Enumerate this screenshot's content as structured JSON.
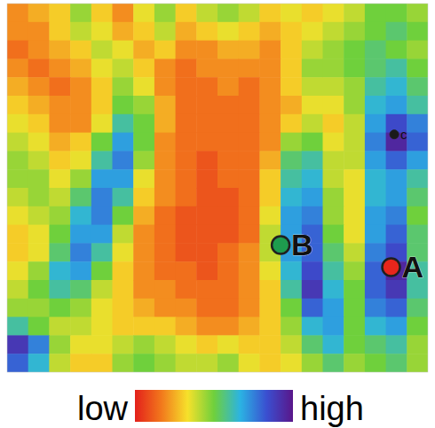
{
  "chart_data": {
    "type": "heatmap",
    "xlim": [
      0,
      20
    ],
    "ylim": [
      0,
      20
    ],
    "tick_labels": false,
    "z": [
      [
        0.2,
        0.25,
        0.3,
        0.45,
        0.3,
        0.2,
        0.35,
        0.45,
        0.3,
        0.4,
        0.45,
        0.4,
        0.3,
        0.35,
        0.3,
        0.35,
        0.4,
        0.5,
        0.5,
        0.45
      ],
      [
        0.2,
        0.2,
        0.3,
        0.4,
        0.35,
        0.25,
        0.3,
        0.4,
        0.25,
        0.3,
        0.35,
        0.3,
        0.25,
        0.3,
        0.35,
        0.4,
        0.45,
        0.5,
        0.55,
        0.5
      ],
      [
        0.15,
        0.2,
        0.25,
        0.3,
        0.4,
        0.35,
        0.25,
        0.3,
        0.2,
        0.2,
        0.25,
        0.25,
        0.2,
        0.3,
        0.4,
        0.45,
        0.5,
        0.55,
        0.5,
        0.45
      ],
      [
        0.2,
        0.15,
        0.2,
        0.25,
        0.35,
        0.4,
        0.3,
        0.2,
        0.15,
        0.2,
        0.2,
        0.2,
        0.2,
        0.3,
        0.45,
        0.45,
        0.5,
        0.55,
        0.6,
        0.5
      ],
      [
        0.25,
        0.2,
        0.15,
        0.2,
        0.3,
        0.45,
        0.35,
        0.2,
        0.15,
        0.15,
        0.2,
        0.15,
        0.2,
        0.3,
        0.4,
        0.4,
        0.45,
        0.6,
        0.65,
        0.55
      ],
      [
        0.3,
        0.25,
        0.2,
        0.2,
        0.3,
        0.5,
        0.45,
        0.25,
        0.15,
        0.15,
        0.15,
        0.15,
        0.2,
        0.25,
        0.35,
        0.35,
        0.45,
        0.65,
        0.7,
        0.6
      ],
      [
        0.35,
        0.3,
        0.2,
        0.2,
        0.35,
        0.6,
        0.5,
        0.25,
        0.15,
        0.15,
        0.15,
        0.15,
        0.2,
        0.3,
        0.4,
        0.3,
        0.4,
        0.7,
        0.85,
        0.75
      ],
      [
        0.4,
        0.35,
        0.25,
        0.3,
        0.5,
        0.7,
        0.5,
        0.2,
        0.15,
        0.15,
        0.15,
        0.15,
        0.2,
        0.45,
        0.5,
        0.35,
        0.4,
        0.75,
        0.95,
        0.8
      ],
      [
        0.45,
        0.4,
        0.3,
        0.35,
        0.6,
        0.75,
        0.45,
        0.2,
        0.15,
        0.1,
        0.15,
        0.15,
        0.25,
        0.55,
        0.6,
        0.4,
        0.4,
        0.7,
        0.8,
        0.7
      ],
      [
        0.45,
        0.45,
        0.35,
        0.45,
        0.7,
        0.7,
        0.35,
        0.2,
        0.15,
        0.1,
        0.15,
        0.15,
        0.3,
        0.6,
        0.65,
        0.4,
        0.35,
        0.65,
        0.7,
        0.6
      ],
      [
        0.4,
        0.45,
        0.4,
        0.55,
        0.75,
        0.6,
        0.3,
        0.2,
        0.15,
        0.1,
        0.1,
        0.15,
        0.3,
        0.65,
        0.7,
        0.45,
        0.35,
        0.65,
        0.7,
        0.55
      ],
      [
        0.35,
        0.4,
        0.45,
        0.65,
        0.75,
        0.5,
        0.25,
        0.15,
        0.1,
        0.1,
        0.1,
        0.15,
        0.35,
        0.7,
        0.75,
        0.45,
        0.35,
        0.7,
        0.75,
        0.5
      ],
      [
        0.3,
        0.35,
        0.5,
        0.7,
        0.7,
        0.4,
        0.2,
        0.15,
        0.1,
        0.1,
        0.1,
        0.15,
        0.4,
        0.7,
        0.8,
        0.5,
        0.35,
        0.7,
        0.8,
        0.55
      ],
      [
        0.3,
        0.35,
        0.55,
        0.75,
        0.6,
        0.35,
        0.2,
        0.15,
        0.1,
        0.1,
        0.15,
        0.2,
        0.4,
        0.7,
        0.8,
        0.55,
        0.4,
        0.75,
        0.85,
        0.55
      ],
      [
        0.35,
        0.45,
        0.65,
        0.7,
        0.5,
        0.3,
        0.2,
        0.15,
        0.15,
        0.1,
        0.15,
        0.2,
        0.35,
        0.65,
        0.85,
        0.6,
        0.45,
        0.8,
        0.95,
        0.6
      ],
      [
        0.4,
        0.5,
        0.6,
        0.55,
        0.4,
        0.3,
        0.2,
        0.2,
        0.15,
        0.15,
        0.15,
        0.2,
        0.3,
        0.6,
        0.9,
        0.65,
        0.5,
        0.8,
        0.9,
        0.6
      ],
      [
        0.45,
        0.45,
        0.5,
        0.45,
        0.35,
        0.3,
        0.25,
        0.2,
        0.2,
        0.15,
        0.15,
        0.2,
        0.3,
        0.5,
        0.8,
        0.7,
        0.5,
        0.75,
        0.8,
        0.55
      ],
      [
        0.6,
        0.5,
        0.4,
        0.4,
        0.35,
        0.3,
        0.3,
        0.3,
        0.25,
        0.2,
        0.2,
        0.25,
        0.3,
        0.45,
        0.65,
        0.7,
        0.5,
        0.65,
        0.7,
        0.5
      ],
      [
        0.9,
        0.75,
        0.45,
        0.35,
        0.35,
        0.4,
        0.45,
        0.4,
        0.35,
        0.3,
        0.35,
        0.3,
        0.3,
        0.4,
        0.55,
        0.65,
        0.5,
        0.55,
        0.6,
        0.45
      ],
      [
        0.8,
        0.65,
        0.4,
        0.3,
        0.3,
        0.45,
        0.5,
        0.45,
        0.4,
        0.4,
        0.45,
        0.35,
        0.3,
        0.35,
        0.45,
        0.55,
        0.45,
        0.5,
        0.55,
        0.45
      ]
    ],
    "colorbar": {
      "range": [
        0,
        1
      ],
      "ticks": [
        {
          "value": 0,
          "label": "low"
        },
        {
          "value": 1,
          "label": "high"
        }
      ]
    },
    "points": [
      {
        "label": "A",
        "x": 18.25,
        "y": 14.3,
        "color": "#e8261c"
      },
      {
        "label": "B",
        "x": 13.0,
        "y": 13.1,
        "color": "#1e9c4e"
      },
      {
        "label": "c",
        "x": 18.4,
        "y": 7.1,
        "color": "#1a1a1a"
      }
    ]
  }
}
